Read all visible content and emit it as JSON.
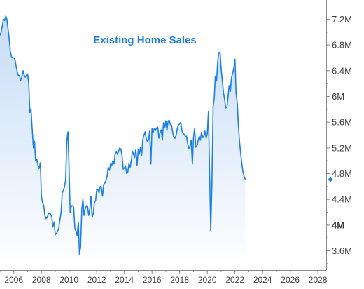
{
  "chart_data": {
    "type": "area",
    "title": "Existing Home Sales",
    "xlabel": "",
    "ylabel": "",
    "xlim": [
      2005.0,
      2028.6
    ],
    "ylim": [
      3.3,
      7.5
    ],
    "x_ticks": [
      {
        "value": 2006,
        "label": "2006"
      },
      {
        "value": 2008,
        "label": "2008"
      },
      {
        "value": 2010,
        "label": "2010"
      },
      {
        "value": 2012,
        "label": "2012"
      },
      {
        "value": 2014,
        "label": "2014"
      },
      {
        "value": 2016,
        "label": "2016"
      },
      {
        "value": 2018,
        "label": "2018"
      },
      {
        "value": 2020,
        "label": "2020"
      },
      {
        "value": 2022,
        "label": "2022"
      },
      {
        "value": 2024,
        "label": "2024"
      },
      {
        "value": 2026,
        "label": "2026"
      },
      {
        "value": 2028,
        "label": "2028"
      }
    ],
    "y_ticks": [
      {
        "value": 3.6,
        "label": "3.6M",
        "bold": false
      },
      {
        "value": 4.0,
        "label": "4M",
        "bold": true
      },
      {
        "value": 4.4,
        "label": "4.4M",
        "bold": false
      },
      {
        "value": 4.8,
        "label": "4.8M",
        "bold": false
      },
      {
        "value": 5.2,
        "label": "5.2M",
        "bold": false
      },
      {
        "value": 5.6,
        "label": "5.6M",
        "bold": false
      },
      {
        "value": 6.0,
        "label": "6M",
        "bold": false
      },
      {
        "value": 6.4,
        "label": "6.4M",
        "bold": false
      },
      {
        "value": 6.8,
        "label": "6.8M",
        "bold": false
      },
      {
        "value": 7.2,
        "label": "7.2M",
        "bold": false
      }
    ],
    "grid": false,
    "legend": "none",
    "last_value_marker": {
      "x": 2022.75,
      "y": 4.71
    },
    "colors": {
      "line": "#1c7fe8",
      "area_top": "#c6dcf7",
      "area_bottom": "#ffffff",
      "title": "#1c7fe8",
      "axis": "#8a8a8a",
      "tick_label": "#404040"
    },
    "series": [
      {
        "x": [
          2005.0,
          2005.08,
          2005.17,
          2005.25,
          2005.33,
          2005.42,
          2005.5,
          2005.58,
          2005.67,
          2005.75,
          2005.83,
          2005.92,
          2006.0,
          2006.08,
          2006.17,
          2006.25,
          2006.33,
          2006.42,
          2006.5,
          2006.58,
          2006.67,
          2006.75,
          2006.83,
          2006.92,
          2007.0,
          2007.08,
          2007.17,
          2007.25,
          2007.33,
          2007.42,
          2007.5,
          2007.58,
          2007.67,
          2007.75,
          2007.83,
          2007.92,
          2008.0,
          2008.08,
          2008.17,
          2008.25,
          2008.33,
          2008.42,
          2008.5,
          2008.58,
          2008.67,
          2008.75,
          2008.83,
          2008.92,
          2009.0,
          2009.08,
          2009.17,
          2009.25,
          2009.33,
          2009.42,
          2009.5,
          2009.58,
          2009.67,
          2009.75,
          2009.83,
          2009.92,
          2010.0,
          2010.08,
          2010.17,
          2010.25,
          2010.33,
          2010.42,
          2010.5,
          2010.58,
          2010.67,
          2010.75,
          2010.83,
          2010.92,
          2011.0,
          2011.08,
          2011.17,
          2011.25,
          2011.33,
          2011.42,
          2011.5,
          2011.58,
          2011.67,
          2011.75,
          2011.83,
          2011.92,
          2012.0,
          2012.08,
          2012.17,
          2012.25,
          2012.33,
          2012.42,
          2012.5,
          2012.58,
          2012.67,
          2012.75,
          2012.83,
          2012.92,
          2013.0,
          2013.08,
          2013.17,
          2013.25,
          2013.33,
          2013.42,
          2013.5,
          2013.58,
          2013.67,
          2013.75,
          2013.83,
          2013.92,
          2014.0,
          2014.08,
          2014.17,
          2014.25,
          2014.33,
          2014.42,
          2014.5,
          2014.58,
          2014.67,
          2014.75,
          2014.83,
          2014.92,
          2015.0,
          2015.08,
          2015.17,
          2015.25,
          2015.33,
          2015.42,
          2015.5,
          2015.58,
          2015.67,
          2015.75,
          2015.83,
          2015.92,
          2016.0,
          2016.08,
          2016.17,
          2016.25,
          2016.33,
          2016.42,
          2016.5,
          2016.58,
          2016.67,
          2016.75,
          2016.83,
          2016.92,
          2017.0,
          2017.08,
          2017.17,
          2017.25,
          2017.33,
          2017.42,
          2017.5,
          2017.58,
          2017.67,
          2017.75,
          2017.83,
          2017.92,
          2018.0,
          2018.08,
          2018.17,
          2018.25,
          2018.33,
          2018.42,
          2018.5,
          2018.58,
          2018.67,
          2018.75,
          2018.83,
          2018.92,
          2019.0,
          2019.08,
          2019.17,
          2019.25,
          2019.33,
          2019.42,
          2019.5,
          2019.58,
          2019.67,
          2019.75,
          2019.83,
          2019.92,
          2020.0,
          2020.08,
          2020.17,
          2020.25,
          2020.33,
          2020.42,
          2020.5,
          2020.58,
          2020.67,
          2020.75,
          2020.83,
          2020.92,
          2021.0,
          2021.08,
          2021.17,
          2021.25,
          2021.33,
          2021.42,
          2021.5,
          2021.58,
          2021.67,
          2021.75,
          2021.83,
          2021.92,
          2022.0,
          2022.08,
          2022.17,
          2022.25,
          2022.33,
          2022.42,
          2022.5,
          2022.58,
          2022.67,
          2022.75
        ],
        "values": [
          6.95,
          7.0,
          7.1,
          7.2,
          7.18,
          7.25,
          7.2,
          7.05,
          6.9,
          6.7,
          6.62,
          6.6,
          6.6,
          6.58,
          6.47,
          6.38,
          6.33,
          6.32,
          6.25,
          6.3,
          6.4,
          6.33,
          6.3,
          6.33,
          6.35,
          6.2,
          5.75,
          5.8,
          5.5,
          5.2,
          5.3,
          5.0,
          5.02,
          4.93,
          4.88,
          4.97,
          4.45,
          4.35,
          4.3,
          4.15,
          4.1,
          4.12,
          4.18,
          4.18,
          4.17,
          4.13,
          3.97,
          4.05,
          3.85,
          3.87,
          3.9,
          3.95,
          4.07,
          4.2,
          4.5,
          4.53,
          4.6,
          4.7,
          5.3,
          5.45,
          4.9,
          4.2,
          4.3,
          4.3,
          4.28,
          3.95,
          3.9,
          3.84,
          4.05,
          3.55,
          3.65,
          4.25,
          4.4,
          4.15,
          4.25,
          4.3,
          4.3,
          4.15,
          4.25,
          4.45,
          4.12,
          4.18,
          4.35,
          4.38,
          4.55,
          4.55,
          4.5,
          4.6,
          4.6,
          4.45,
          4.62,
          4.65,
          4.7,
          4.75,
          4.9,
          4.85,
          4.95,
          4.92,
          5.0,
          4.95,
          5.1,
          5.15,
          5.1,
          5.15,
          5.2,
          5.18,
          5.08,
          4.87,
          4.89,
          4.92,
          4.8,
          4.82,
          4.95,
          4.9,
          5.0,
          5.15,
          5.1,
          5.05,
          5.18,
          4.93,
          5.17,
          5.1,
          5.21,
          5.08,
          5.33,
          5.4,
          5.45,
          5.35,
          5.3,
          5.33,
          5.46,
          4.95,
          5.5,
          5.44,
          5.5,
          5.47,
          5.51,
          5.52,
          5.35,
          5.44,
          5.48,
          5.32,
          5.59,
          5.52,
          5.62,
          5.47,
          5.62,
          5.63,
          5.56,
          5.55,
          5.44,
          5.37,
          5.35,
          5.4,
          5.5,
          5.56,
          5.57,
          5.6,
          5.46,
          5.43,
          5.41,
          5.38,
          5.38,
          5.27,
          5.19,
          5.23,
          5.32,
          4.95,
          5.35,
          5.5,
          5.21,
          5.23,
          5.31,
          5.38,
          5.32,
          5.44,
          5.36,
          5.38,
          5.46,
          5.35,
          5.42,
          5.77,
          4.8,
          3.91,
          4.6,
          5.84,
          5.97,
          6.31,
          6.24,
          6.54,
          6.68,
          6.69,
          6.44,
          6.26,
          6.06,
          5.96,
          5.82,
          5.84,
          5.99,
          6.17,
          6.08,
          6.29,
          6.36,
          6.44,
          6.58,
          6.05,
          5.9,
          5.55,
          5.3,
          5.1,
          4.95,
          4.83,
          4.75,
          4.71
        ]
      }
    ]
  }
}
